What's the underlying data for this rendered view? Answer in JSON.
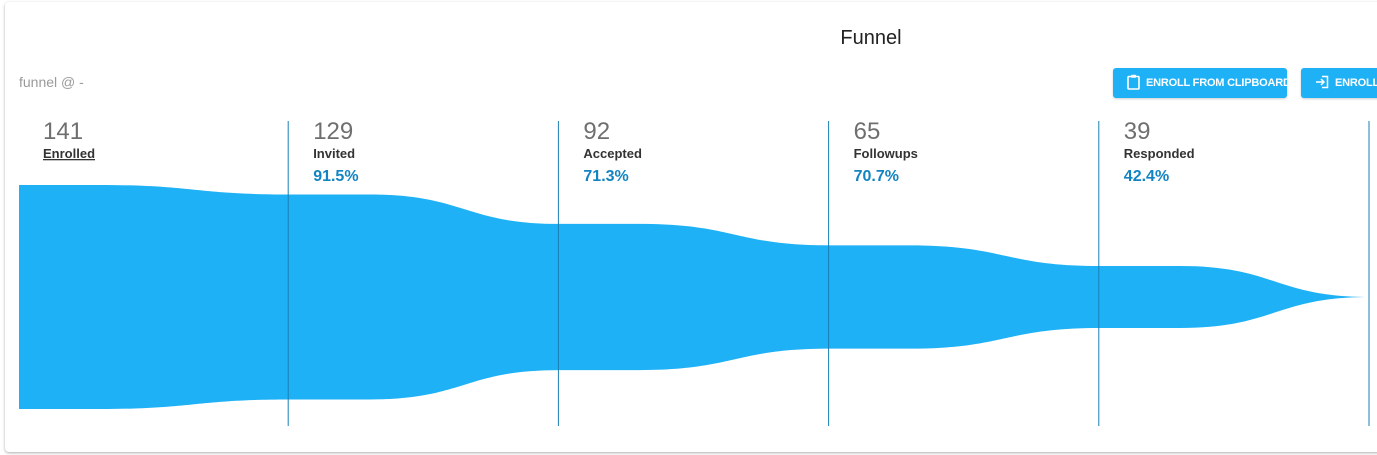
{
  "title": "Funnel",
  "subtitle": "funnel @ -",
  "buttons": {
    "clipboard": "ENROLL FROM CLIPBOARD",
    "file": "ENROLL FROM FILE"
  },
  "colors": {
    "funnel_fill": "#1fb1f5",
    "divider": "#1a7fb4",
    "button": "#1fb1f5",
    "percent": "#1284c2"
  },
  "chart_data": {
    "type": "funnel",
    "title": "Funnel",
    "stages": [
      {
        "label": "Enrolled",
        "count": "141",
        "pct": ""
      },
      {
        "label": "Invited",
        "count": "129",
        "pct": "91.5%"
      },
      {
        "label": "Accepted",
        "count": "92",
        "pct": "71.3%"
      },
      {
        "label": "Followups",
        "count": "65",
        "pct": "70.7%"
      },
      {
        "label": "Responded",
        "count": "39",
        "pct": "42.4%"
      }
    ],
    "values": [
      141,
      129,
      92,
      65,
      39,
      0
    ]
  }
}
